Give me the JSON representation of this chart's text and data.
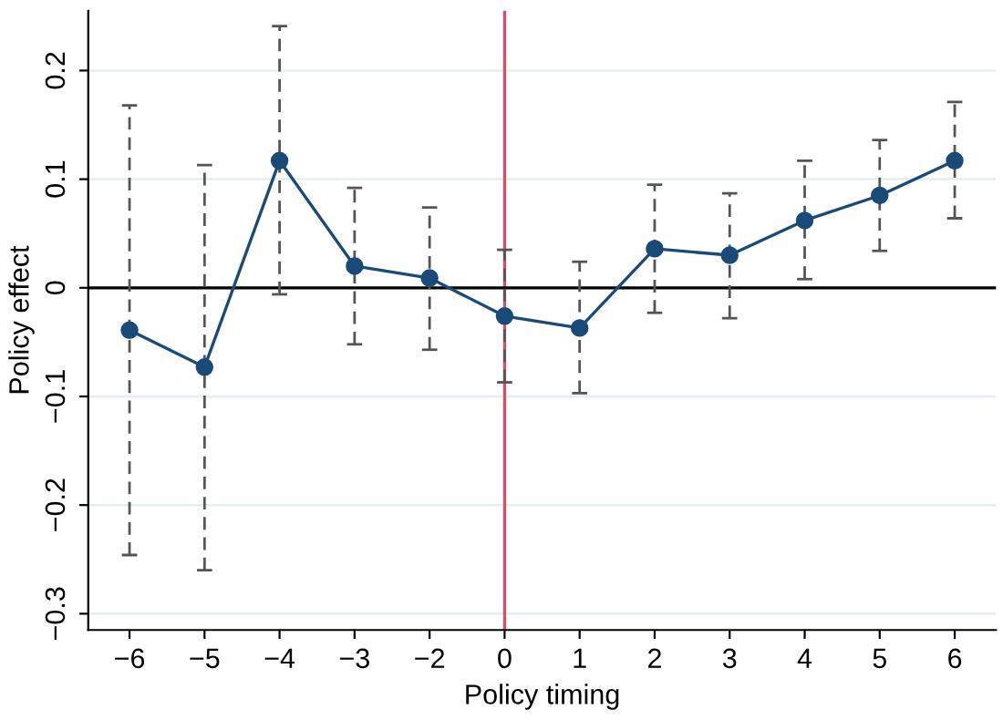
{
  "chart_data": {
    "type": "line",
    "xlabel": "Policy timing",
    "ylabel": "Policy effect",
    "categories": [
      "−6",
      "−5",
      "−4",
      "−3",
      "−2",
      "0",
      "1",
      "2",
      "3",
      "4",
      "5",
      "6"
    ],
    "series": [
      {
        "color": "#1a4a78",
        "values": [
          -0.039,
          -0.073,
          0.117,
          0.02,
          0.009,
          -0.026,
          -0.037,
          0.036,
          0.03,
          0.062,
          0.085,
          0.117
        ],
        "errors": [
          [
            -0.246,
            0.168
          ],
          [
            -0.26,
            0.113
          ],
          [
            -0.006,
            0.241
          ],
          [
            -0.052,
            0.092
          ],
          [
            -0.057,
            0.074
          ],
          [
            -0.087,
            0.035
          ],
          [
            -0.097,
            0.024
          ],
          [
            -0.023,
            0.095
          ],
          [
            -0.028,
            0.087
          ],
          [
            0.008,
            0.117
          ],
          [
            0.034,
            0.136
          ],
          [
            0.064,
            0.171
          ]
        ]
      }
    ],
    "marker": "circle",
    "ylim": [
      -0.315,
      0.255
    ],
    "yticks": [
      {
        "value": -0.3,
        "label": "−0.3"
      },
      {
        "value": -0.2,
        "label": "−0.2"
      },
      {
        "value": -0.1,
        "label": "−0.1"
      },
      0,
      0.1,
      0.2
    ],
    "ref_lines": [
      {
        "axis": "x",
        "value": "0",
        "color": "#d6506e"
      },
      {
        "axis": "y",
        "value": 0,
        "color": "#000000"
      }
    ],
    "grid": "y"
  }
}
